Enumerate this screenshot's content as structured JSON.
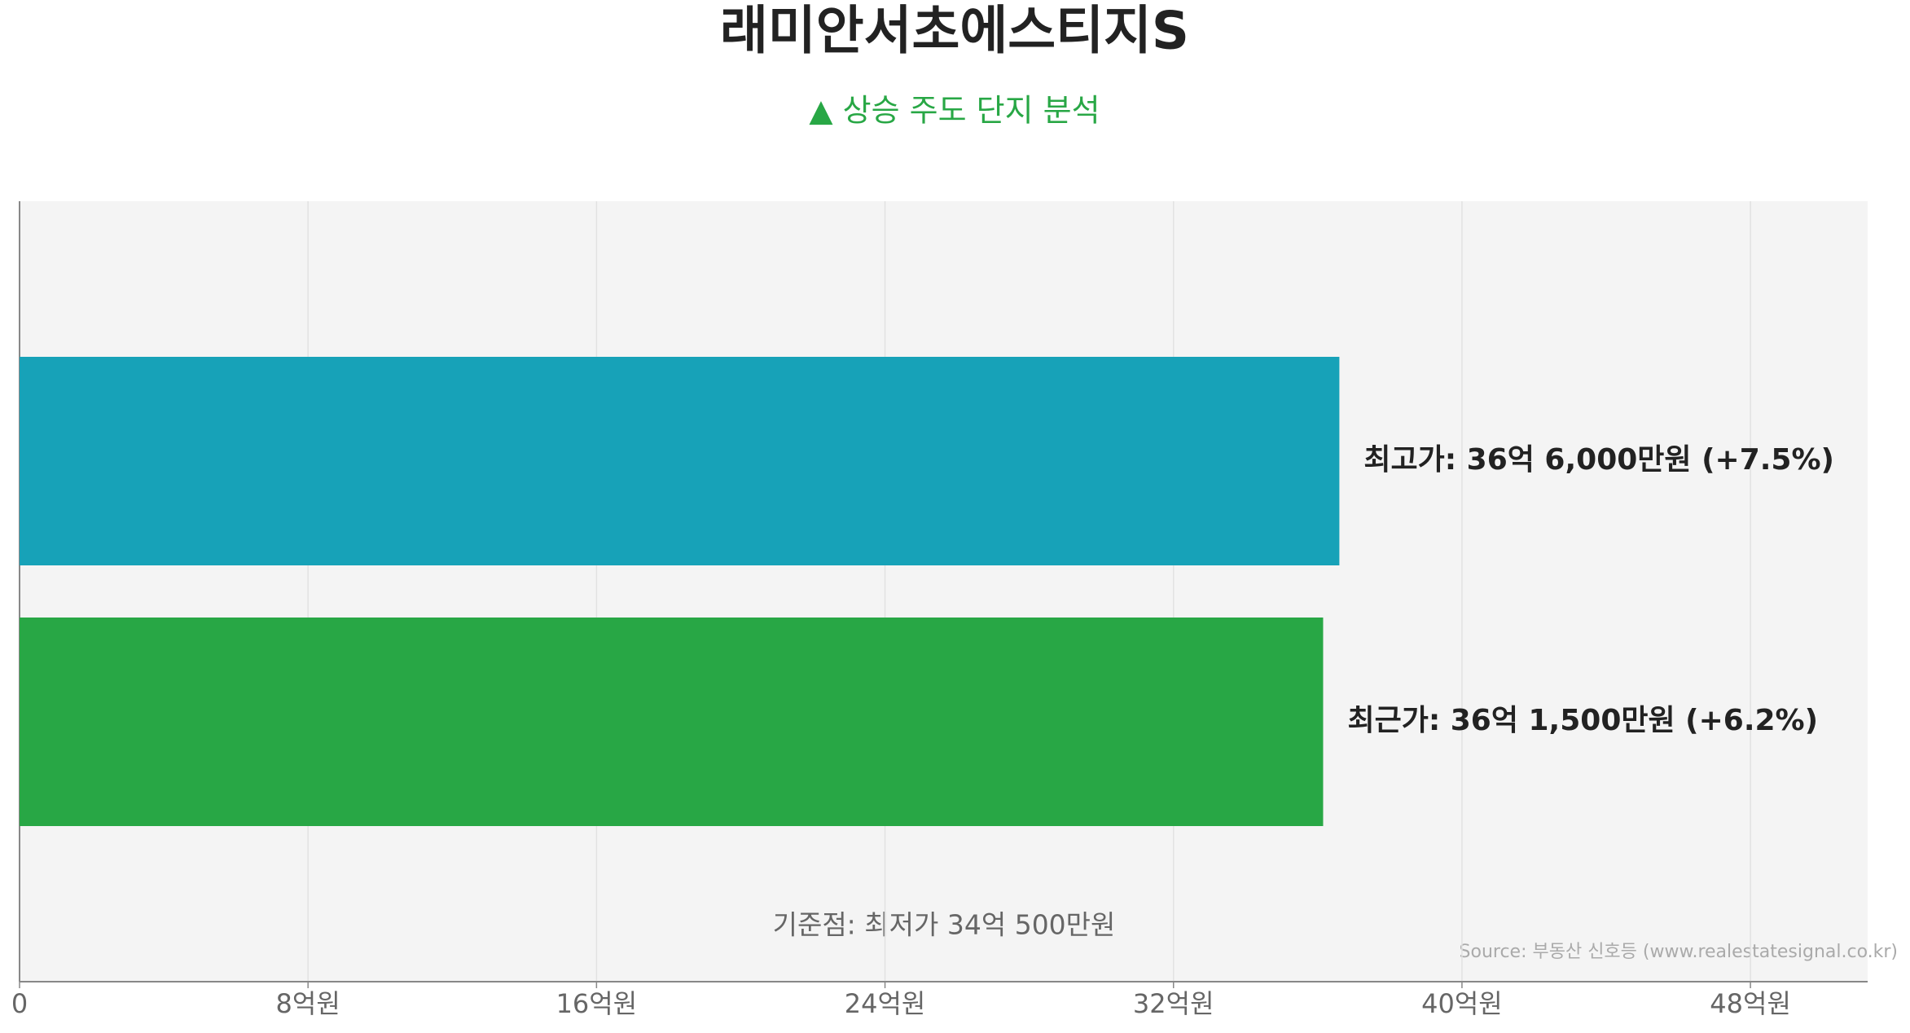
{
  "chart_data": {
    "type": "hbar",
    "title": "래미안서초에스티지S",
    "subtitle": "▲ 상승 주도 단지 분석",
    "values": [
      36.6,
      36.15
    ],
    "value_labels": [
      "최고가: 36억 6,000만원 (+7.5%)",
      "최근가: 36억 1,500만원 (+6.2%)"
    ],
    "colors": [
      "#17a2b8",
      "#28a745"
    ],
    "xlim": [
      0,
      51.25
    ],
    "xticks": [
      0,
      {
        "value": 8,
        "label": "8억원"
      },
      {
        "value": 16,
        "label": "16억원"
      },
      {
        "value": 24,
        "label": "24억원"
      },
      {
        "value": 32,
        "label": "32억원"
      },
      {
        "value": 40,
        "label": "40억원"
      },
      {
        "value": 48,
        "label": "48억원"
      }
    ],
    "grid": true,
    "annotation": "기준점: 최저가 34억 500만원",
    "source": "Source: 부동산 신호등 (www.realestatesignal.co.kr)"
  }
}
